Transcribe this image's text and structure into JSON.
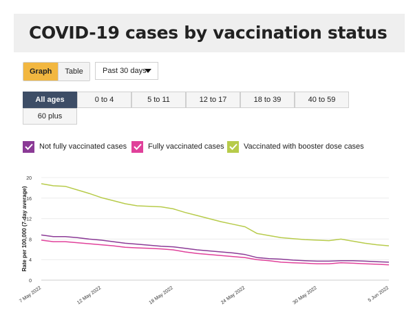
{
  "header": {
    "title": "COVID-19 cases by vaccination status"
  },
  "view_toggle": {
    "options": [
      "Graph",
      "Table"
    ],
    "selected": "Graph"
  },
  "range_select": {
    "value": "Past 30 days",
    "icon": "caret-down-icon"
  },
  "age_groups": {
    "options": [
      "All ages",
      "0 to 4",
      "5 to 11",
      "12 to 17",
      "18 to 39",
      "40 to 59",
      "60 plus"
    ],
    "selected": "All ages"
  },
  "legend": [
    {
      "label": "Not fully vaccinated cases",
      "color": "#8b3a96",
      "icon": "checkmark-icon"
    },
    {
      "label": "Fully vaccinated cases",
      "color": "#e0409a",
      "icon": "checkmark-icon"
    },
    {
      "label": "Vaccinated with booster dose cases",
      "color": "#b7cb4a",
      "icon": "checkmark-icon"
    }
  ],
  "colors": {
    "accent": "#f2b740",
    "active_age": "#3d4d66"
  },
  "chart_data": {
    "type": "line",
    "ylabel": "Rate per 100,000 (7-day average)",
    "xlabel": "",
    "ylim": [
      0,
      20
    ],
    "yticks": [
      0,
      4,
      8,
      12,
      16,
      20
    ],
    "x_tick_labels": [
      "7 May 2022",
      "12 May 2022",
      "18 May 2022",
      "24 May 2022",
      "30 May 2022",
      "5 Jun 2022"
    ],
    "x": [
      "7 May 2022",
      "8 May 2022",
      "9 May 2022",
      "10 May 2022",
      "11 May 2022",
      "12 May 2022",
      "13 May 2022",
      "14 May 2022",
      "15 May 2022",
      "16 May 2022",
      "17 May 2022",
      "18 May 2022",
      "19 May 2022",
      "20 May 2022",
      "21 May 2022",
      "22 May 2022",
      "23 May 2022",
      "24 May 2022",
      "25 May 2022",
      "26 May 2022",
      "27 May 2022",
      "28 May 2022",
      "29 May 2022",
      "30 May 2022",
      "31 May 2022",
      "1 Jun 2022",
      "2 Jun 2022",
      "3 Jun 2022",
      "4 Jun 2022",
      "5 Jun 2022"
    ],
    "grid": true,
    "series": [
      {
        "name": "Not fully vaccinated cases",
        "color": "#8b3a96",
        "values": [
          8.8,
          8.5,
          8.5,
          8.3,
          8.0,
          7.8,
          7.5,
          7.2,
          7.0,
          6.8,
          6.6,
          6.5,
          6.2,
          5.9,
          5.7,
          5.5,
          5.3,
          5.0,
          4.4,
          4.2,
          4.1,
          3.9,
          3.8,
          3.7,
          3.7,
          3.8,
          3.8,
          3.7,
          3.6,
          3.5
        ]
      },
      {
        "name": "Fully vaccinated cases",
        "color": "#e0409a",
        "values": [
          7.8,
          7.5,
          7.5,
          7.3,
          7.1,
          6.9,
          6.7,
          6.4,
          6.3,
          6.2,
          6.1,
          5.9,
          5.5,
          5.2,
          5.0,
          4.8,
          4.6,
          4.4,
          4.0,
          3.8,
          3.5,
          3.4,
          3.3,
          3.2,
          3.2,
          3.4,
          3.3,
          3.2,
          3.1,
          3.0
        ]
      },
      {
        "name": "Vaccinated with booster dose cases",
        "color": "#b7cb4a",
        "values": [
          18.8,
          18.4,
          18.3,
          17.6,
          16.9,
          16.1,
          15.5,
          14.9,
          14.5,
          14.4,
          14.3,
          13.9,
          13.2,
          12.6,
          12.0,
          11.4,
          10.9,
          10.4,
          9.1,
          8.7,
          8.3,
          8.1,
          7.9,
          7.8,
          7.7,
          8.0,
          7.6,
          7.2,
          6.9,
          6.7
        ]
      }
    ]
  }
}
